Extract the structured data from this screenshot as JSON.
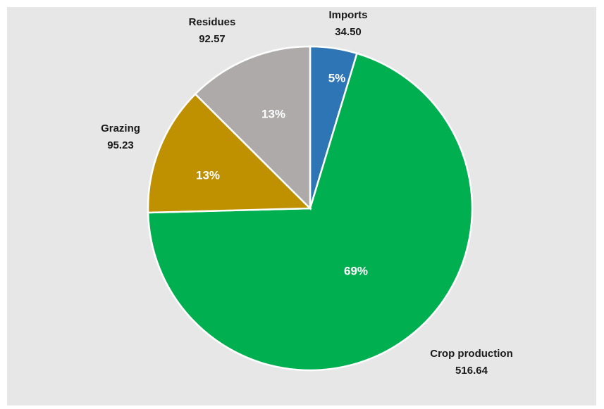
{
  "chart_data": {
    "type": "pie",
    "categories": [
      "Imports",
      "Crop production",
      "Grazing",
      "Residues"
    ],
    "values": [
      34.5,
      516.64,
      95.23,
      92.57
    ],
    "value_labels": [
      "34.50",
      "516.64",
      "95.23",
      "92.57"
    ],
    "percent_labels": [
      "5%",
      "69%",
      "13%",
      "13%"
    ],
    "colors": [
      "#2e75b6",
      "#00b050",
      "#bf9000",
      "#aeaaaa"
    ]
  }
}
